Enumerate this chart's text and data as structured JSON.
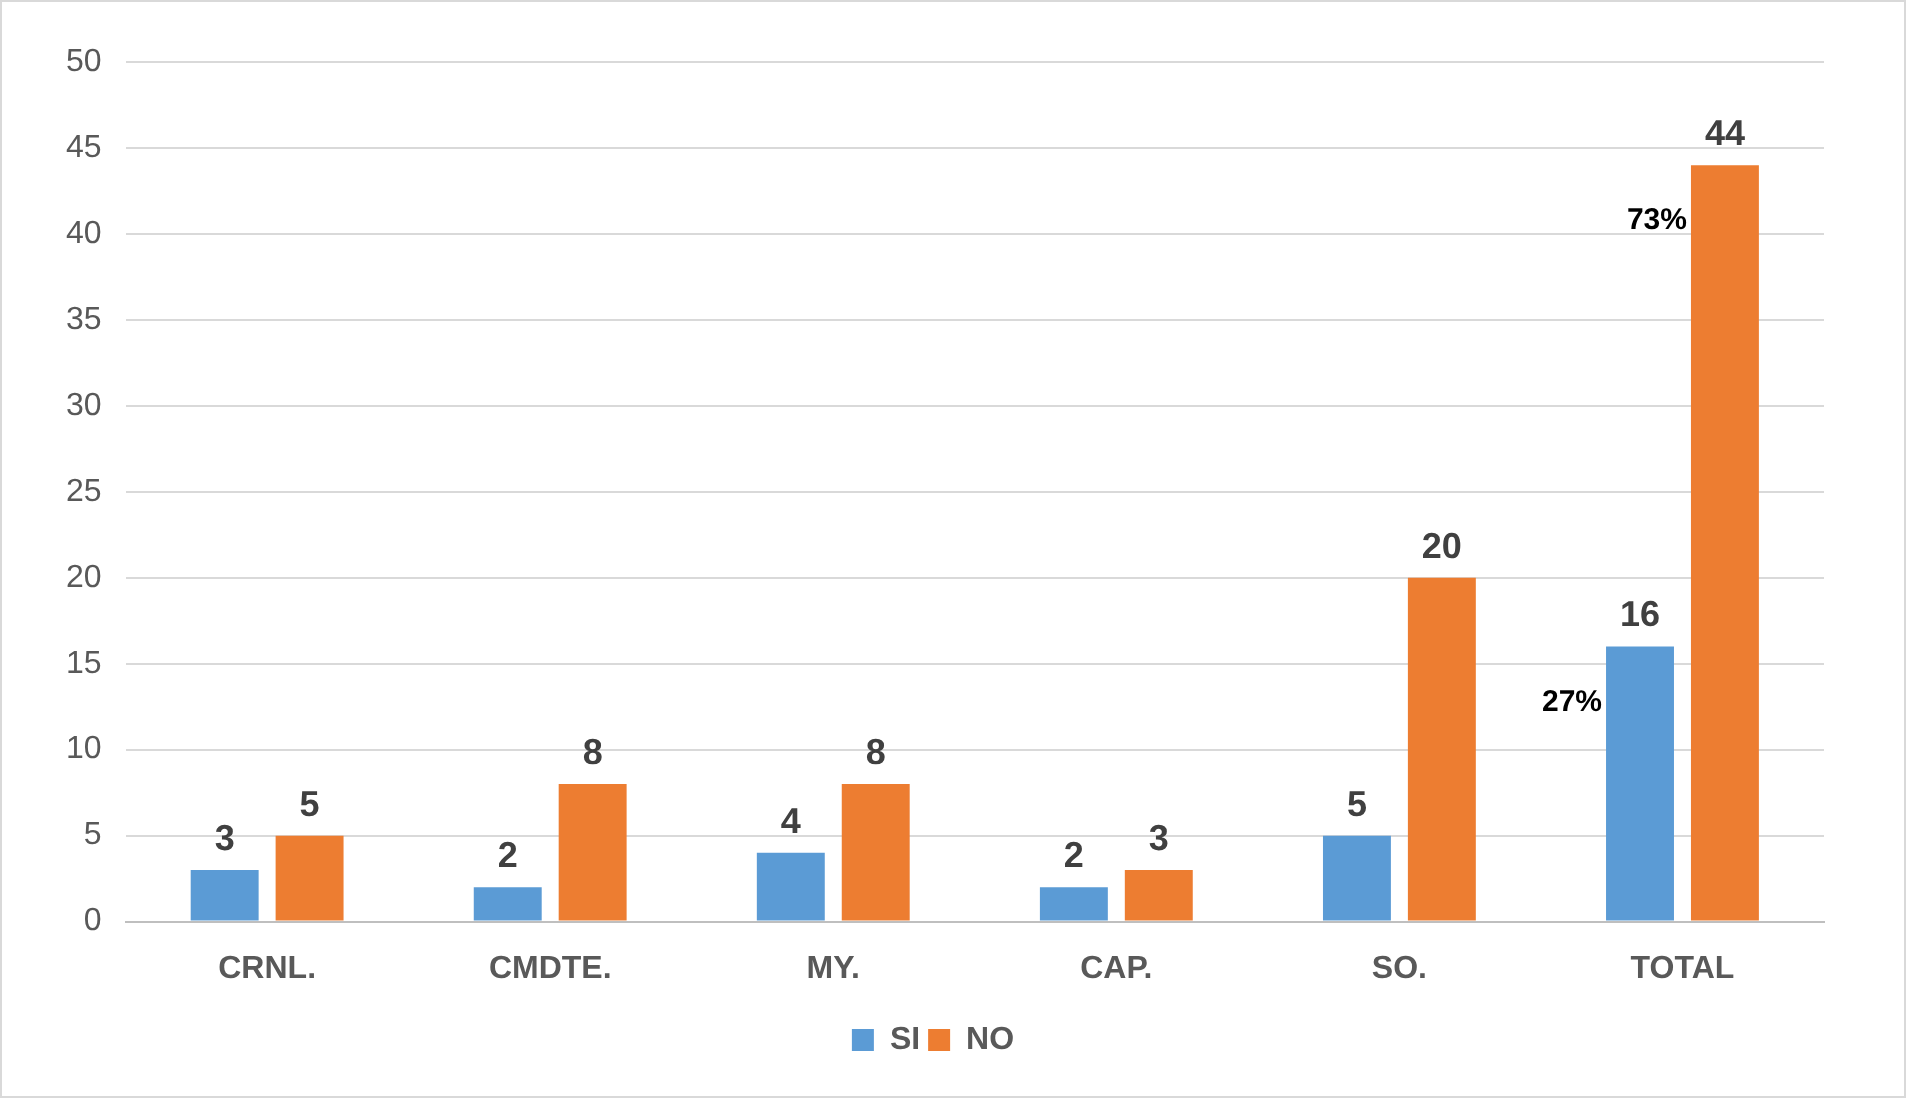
{
  "chart_data": {
    "type": "bar",
    "categories": [
      "CRNL.",
      "CMDTE.",
      "MY.",
      "CAP.",
      "SO.",
      "TOTAL"
    ],
    "series": [
      {
        "name": "SI",
        "color": "#5b9bd5",
        "values": [
          3,
          2,
          4,
          2,
          5,
          16
        ]
      },
      {
        "name": "NO",
        "color": "#ed7d31",
        "values": [
          5,
          8,
          8,
          3,
          20,
          44
        ]
      }
    ],
    "ylim": [
      0,
      50
    ],
    "yticks": [
      0,
      5,
      10,
      15,
      20,
      25,
      30,
      35,
      40,
      45,
      50
    ],
    "grid": "y",
    "legend": "bottom",
    "data_labels": true,
    "annotations": [
      "27%",
      "73%"
    ]
  }
}
